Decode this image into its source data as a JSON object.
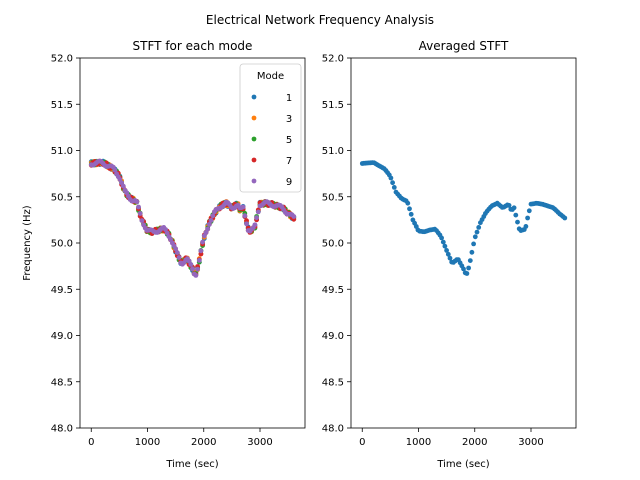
{
  "chart_data": {
    "suptitle": "Electrical Network Frequency Analysis",
    "panels": [
      {
        "type": "scatter",
        "title": "STFT for each mode",
        "xlabel": "Time (sec)",
        "ylabel": "Frequency (Hz)",
        "xlim": [
          -200,
          3800
        ],
        "ylim": [
          48.0,
          52.0
        ],
        "xticks": [
          0,
          1000,
          2000,
          3000
        ],
        "yticks": [
          "48.0",
          "48.5",
          "49.0",
          "49.5",
          "50.0",
          "50.5",
          "51.0",
          "51.5",
          "52.0"
        ],
        "legend": {
          "title": "Mode",
          "placement": "top-right",
          "entries": [
            {
              "label": "1",
              "color": "#1f77b4"
            },
            {
              "label": "3",
              "color": "#ff7f0e"
            },
            {
              "label": "5",
              "color": "#2ca02c"
            },
            {
              "label": "7",
              "color": "#d62728"
            },
            {
              "label": "9",
              "color": "#9467bd"
            }
          ]
        },
        "series": [
          {
            "name": "1",
            "color": "#1f77b4"
          },
          {
            "name": "3",
            "color": "#ff7f0e"
          },
          {
            "name": "5",
            "color": "#2ca02c"
          },
          {
            "name": "7",
            "color": "#d62728"
          },
          {
            "name": "9",
            "color": "#9467bd"
          }
        ]
      },
      {
        "type": "scatter",
        "title": "Averaged STFT",
        "xlabel": "Time (sec)",
        "ylabel": "",
        "xlim": [
          -200,
          3800
        ],
        "ylim": [
          48.0,
          52.0
        ],
        "xticks": [
          0,
          1000,
          2000,
          3000
        ],
        "yticks": [
          "48.0",
          "48.5",
          "49.0",
          "49.5",
          "50.0",
          "50.5",
          "51.0",
          "51.5",
          "52.0"
        ],
        "series": [
          {
            "name": "Averaged",
            "color": "#1f77b4"
          }
        ]
      }
    ],
    "x": [
      0,
      200,
      400,
      500,
      600,
      700,
      800,
      900,
      1000,
      1100,
      1200,
      1300,
      1400,
      1500,
      1600,
      1700,
      1800,
      1850,
      1900,
      2000,
      2100,
      2200,
      2300,
      2400,
      2500,
      2600,
      2650,
      2700,
      2750,
      2800,
      2900,
      2950,
      3000,
      3100,
      3200,
      3300,
      3400,
      3500,
      3600
    ],
    "y": [
      50.86,
      50.87,
      50.8,
      50.72,
      50.55,
      50.48,
      50.45,
      50.25,
      50.13,
      50.12,
      50.14,
      50.15,
      50.07,
      49.92,
      49.78,
      49.83,
      49.72,
      49.65,
      49.75,
      50.05,
      50.22,
      50.33,
      50.4,
      50.43,
      50.38,
      50.42,
      50.35,
      50.38,
      50.25,
      50.13,
      50.15,
      50.3,
      50.42,
      50.43,
      50.42,
      50.4,
      50.38,
      50.32,
      50.27
    ]
  }
}
